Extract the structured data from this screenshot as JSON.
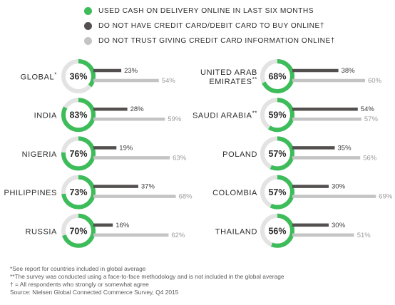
{
  "legend": [
    {
      "label": "USED CASH ON DELIVERY ONLINE IN LAST SIX MONTHS",
      "color": "#3dbc5a"
    },
    {
      "label": "DO NOT HAVE CREDIT CARD/DEBIT CARD TO BUY ONLINE†",
      "color": "#545050"
    },
    {
      "label": "DO NOT TRUST GIVING CREDIT CARD INFORMATION ONLINE†",
      "color": "#c4c4c4"
    }
  ],
  "chart_data": {
    "type": "bar",
    "series": [
      {
        "name": "USED CASH ON DELIVERY ONLINE IN LAST SIX MONTHS",
        "color": "#3dbc5a"
      },
      {
        "name": "DO NOT HAVE CREDIT CARD/DEBIT CARD TO BUY ONLINE†",
        "color": "#545050"
      },
      {
        "name": "DO NOT TRUST GIVING CREDIT CARD INFORMATION ONLINE†",
        "color": "#c4c4c4"
      }
    ],
    "ring_track_color": "#e3e3e3",
    "columns": [
      [
        {
          "name": "GLOBAL",
          "mark": "*",
          "cod": 36,
          "no_card": 23,
          "no_trust": 54
        },
        {
          "name": "INDIA",
          "mark": "",
          "cod": 83,
          "no_card": 28,
          "no_trust": 59
        },
        {
          "name": "NIGERIA",
          "mark": "",
          "cod": 76,
          "no_card": 19,
          "no_trust": 63
        },
        {
          "name": "PHILIPPINES",
          "mark": "",
          "cod": 73,
          "no_card": 37,
          "no_trust": 68
        },
        {
          "name": "RUSSIA",
          "mark": "",
          "cod": 70,
          "no_card": 16,
          "no_trust": 62
        }
      ],
      [
        {
          "name": "UNITED ARAB|EMIRATES",
          "mark": "**",
          "cod": 68,
          "no_card": 38,
          "no_trust": 60
        },
        {
          "name": "SAUDI ARABIA",
          "mark": "**",
          "cod": 59,
          "no_card": 54,
          "no_trust": 57
        },
        {
          "name": "POLAND",
          "mark": "",
          "cod": 57,
          "no_card": 35,
          "no_trust": 56
        },
        {
          "name": "COLOMBIA",
          "mark": "",
          "cod": 57,
          "no_card": 30,
          "no_trust": 69
        },
        {
          "name": "THAILAND",
          "mark": "",
          "cod": 56,
          "no_card": 30,
          "no_trust": 51
        }
      ]
    ]
  },
  "notes": [
    "*See report for countries included in global average",
    "**The survey was conducted using a face-to-face methodology and is not included in the global average",
    "† = All respondents who strongly or somewhat agree",
    "Source: Nielsen Global Connected Commerce Survey, Q4 2015"
  ]
}
